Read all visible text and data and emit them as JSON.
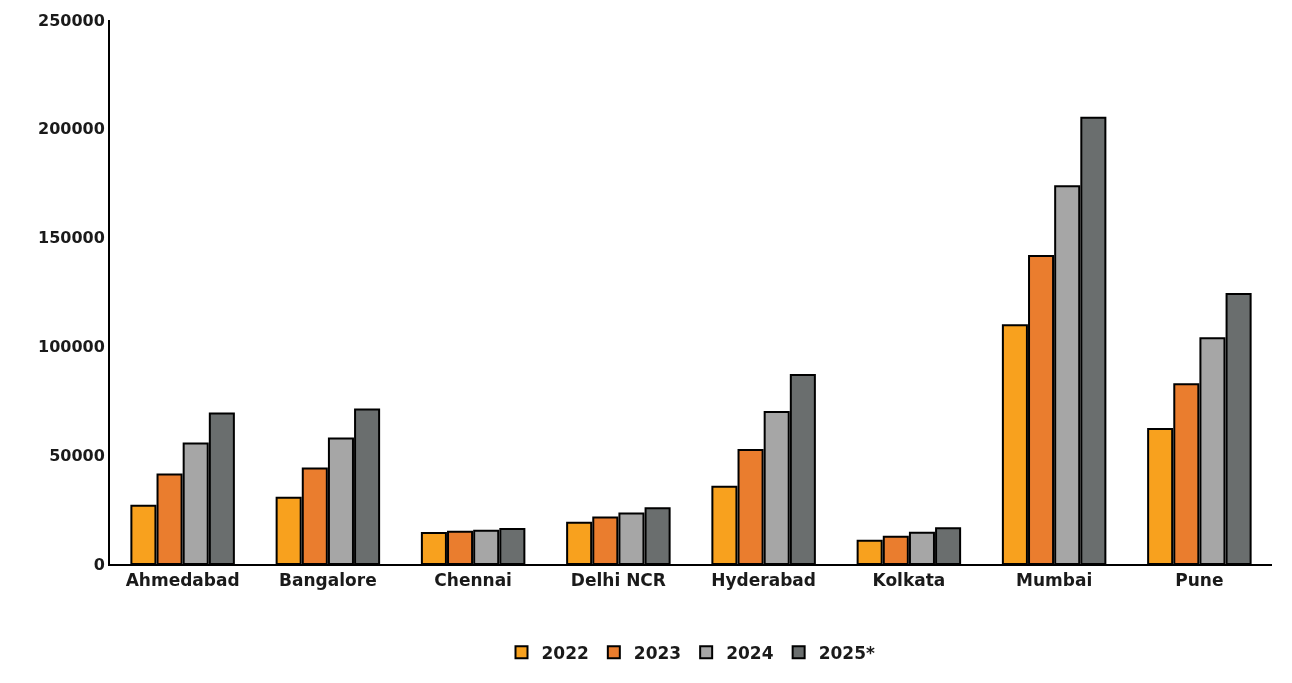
{
  "chart_data": {
    "type": "bar",
    "categories": [
      "Ahmedabad",
      "Bangalore",
      "Chennai",
      "Delhi NCR",
      "Hyderabad",
      "Kolkata",
      "Mumbai",
      "Pune"
    ],
    "series": [
      {
        "name": "2022",
        "color": "#f8a11e",
        "values": [
          26800,
          30400,
          14200,
          19000,
          35500,
          10700,
          109700,
          62000
        ]
      },
      {
        "name": "2023",
        "color": "#ea7d2e",
        "values": [
          41100,
          43900,
          14800,
          21400,
          52400,
          12500,
          141500,
          82600
        ]
      },
      {
        "name": "2024",
        "color": "#a6a6a6",
        "values": [
          55400,
          57700,
          15300,
          23200,
          69800,
          14400,
          173600,
          103700
        ]
      },
      {
        "name": "2025*",
        "color": "#6a6e6e",
        "values": [
          69200,
          71000,
          16100,
          25600,
          86800,
          16400,
          205100,
          124100
        ]
      }
    ],
    "ylim": [
      0,
      250000
    ],
    "yticks": [
      0,
      50000,
      100000,
      150000,
      200000,
      250000
    ],
    "legend": "bottom"
  }
}
